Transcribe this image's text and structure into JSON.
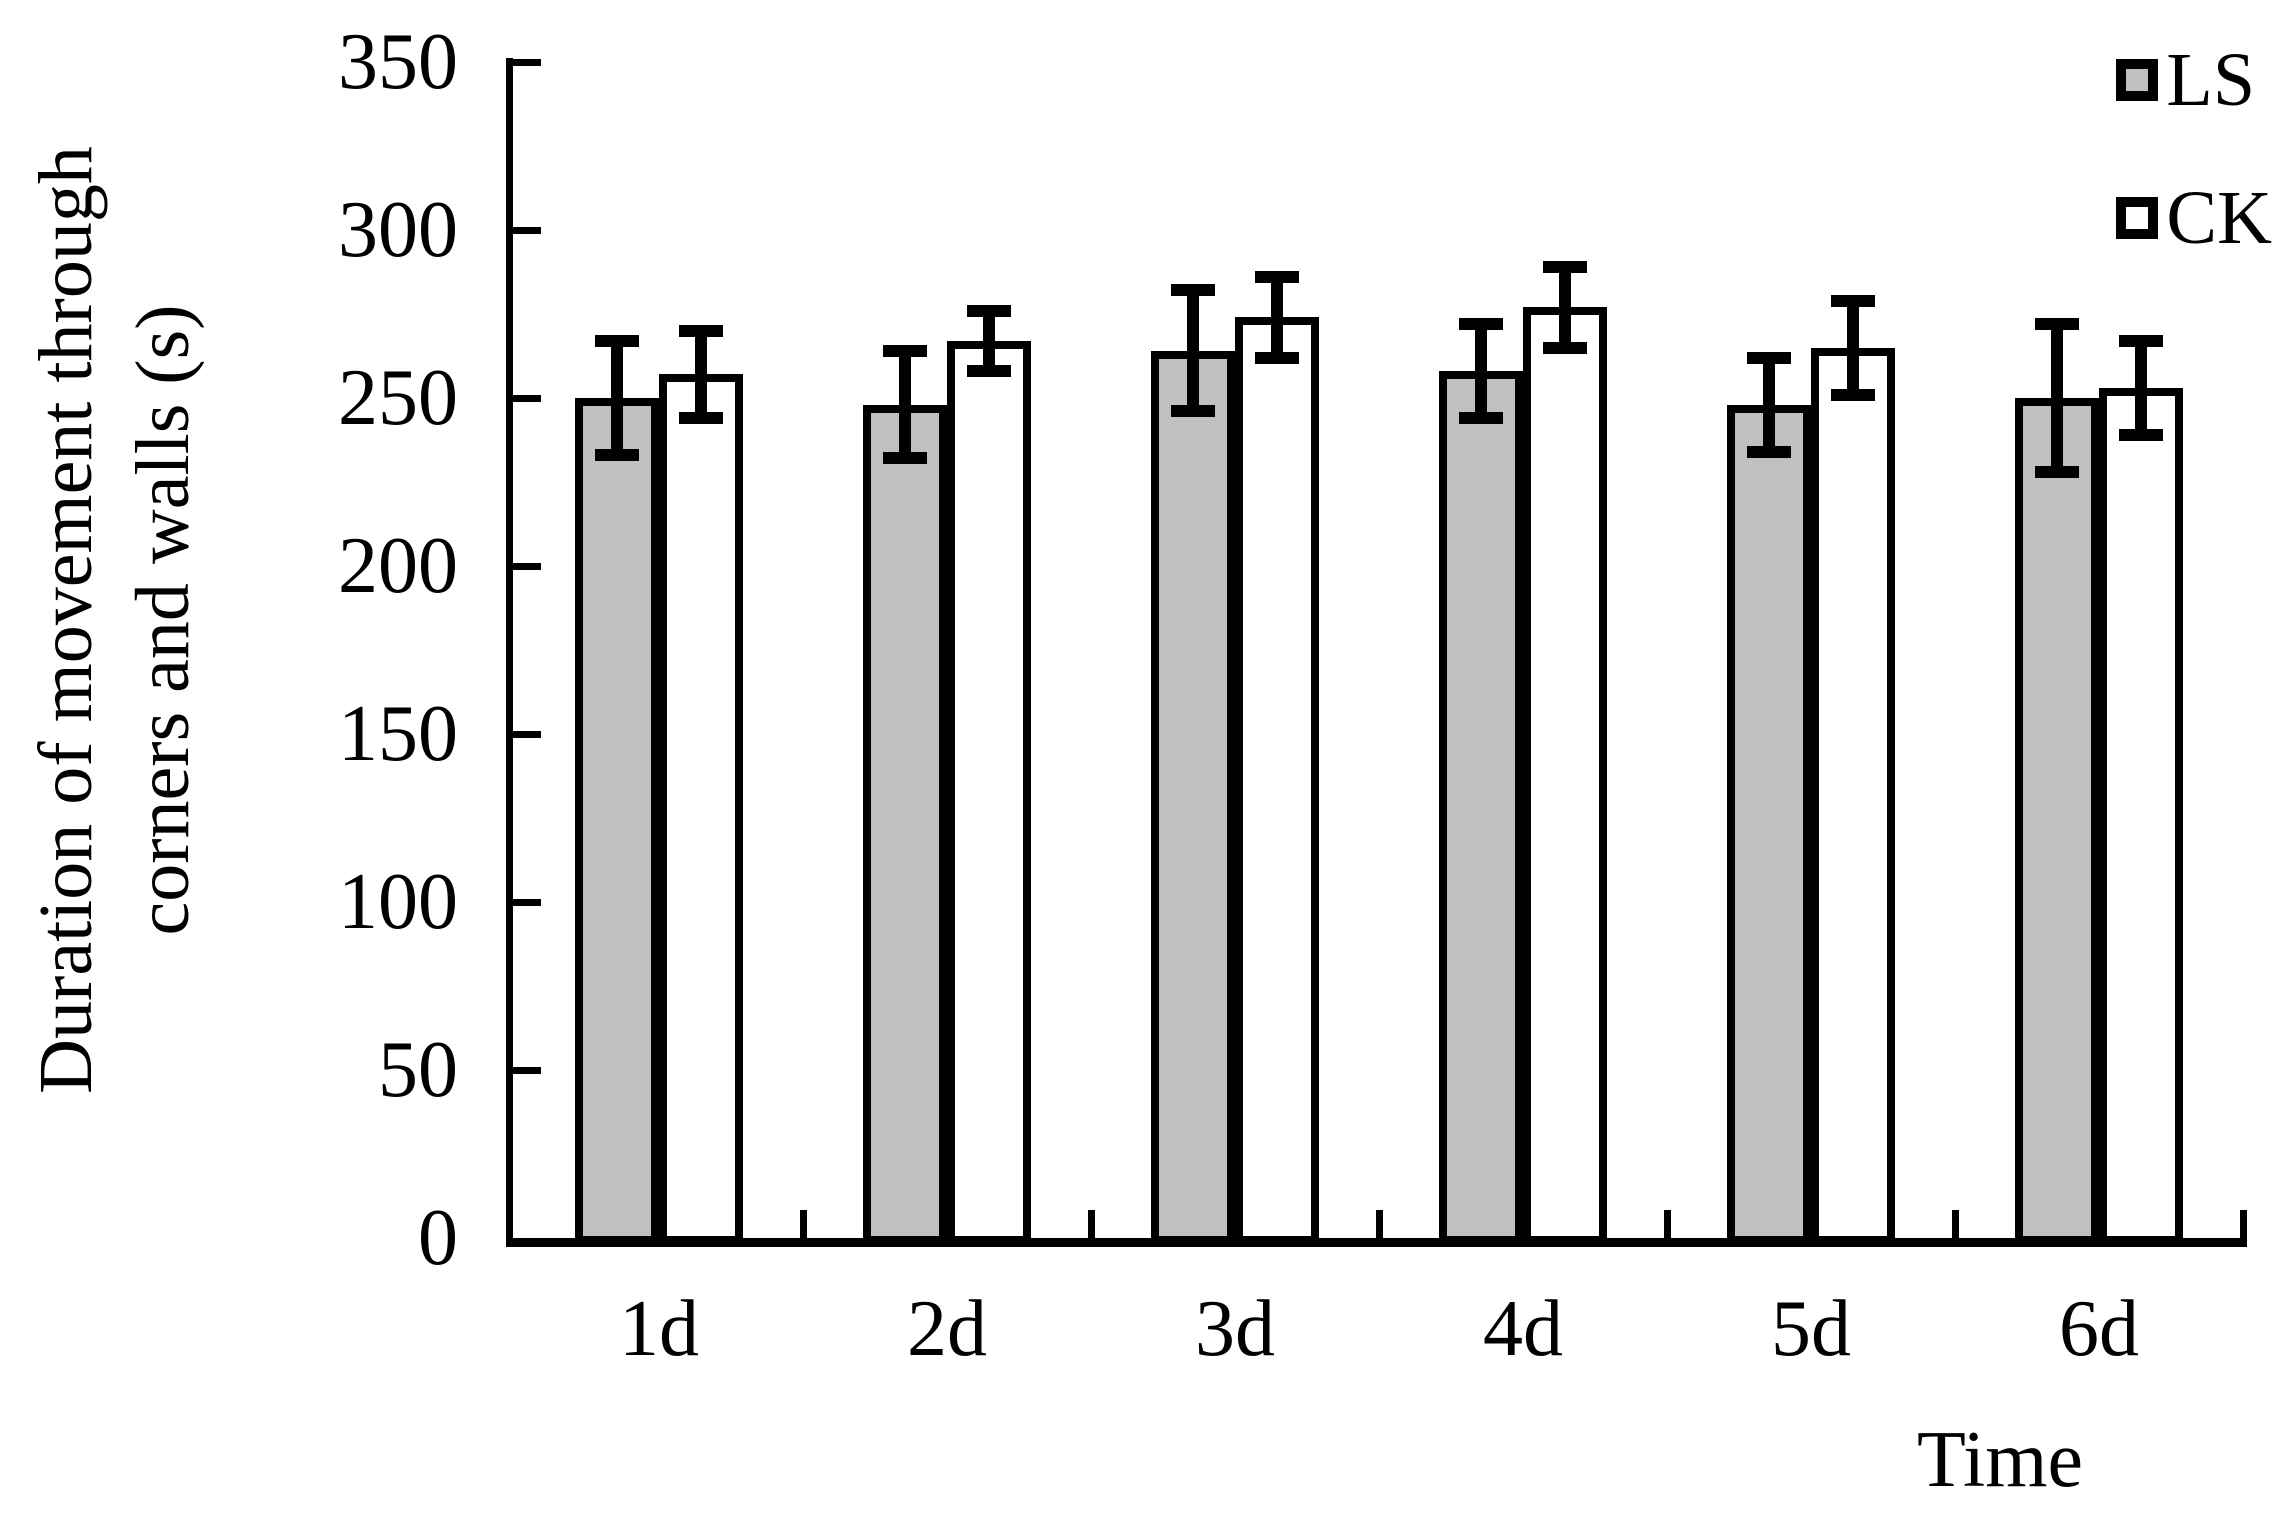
{
  "chart_data": {
    "type": "bar",
    "title": "",
    "xlabel": "Time",
    "ylabel": "Duration of movement through corners and walls (s)",
    "ylabel_lines": [
      "Duration of movement through",
      "corners and walls (s)"
    ],
    "categories": [
      "1d",
      "2d",
      "3d",
      "4d",
      "5d",
      "6d"
    ],
    "series": [
      {
        "name": "LS",
        "color": "#C0C0C0",
        "values": [
          250,
          248,
          264,
          258,
          248,
          250
        ],
        "errors": [
          17,
          16,
          18,
          14,
          14,
          22
        ]
      },
      {
        "name": "CK",
        "color": "#FFFFFF",
        "values": [
          257,
          267,
          274,
          277,
          265,
          253
        ],
        "errors": [
          13,
          9,
          12,
          12,
          14,
          14
        ]
      }
    ],
    "ylim": [
      0,
      350
    ],
    "ytick_step": 50,
    "yticks": [
      "0",
      "50",
      "100",
      "150",
      "200",
      "250",
      "300",
      "350"
    ],
    "legend_position": "top-right",
    "grid": false,
    "bar_outline": "#000000",
    "error_bars": true
  }
}
